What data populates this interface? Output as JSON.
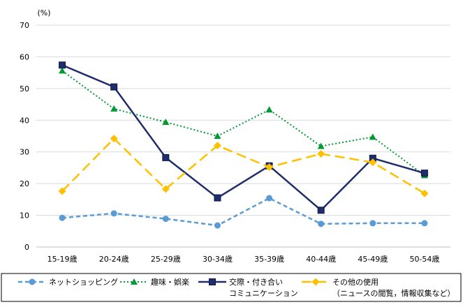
{
  "chart_data": {
    "type": "line",
    "ylabel": "(%)",
    "ylim": [
      0,
      70
    ],
    "yticks": [
      0,
      10,
      20,
      30,
      40,
      50,
      60,
      70
    ],
    "grid": "horizontal",
    "legend_position": "bottom",
    "categories": [
      "15-19歳",
      "20-24歳",
      "25-29歳",
      "30-34歳",
      "35-39歳",
      "40-44歳",
      "45-49歳",
      "50-54歳"
    ],
    "series": [
      {
        "name": "ネットショッピング",
        "name_lines": [
          "ネットショッピング"
        ],
        "color": "#5b9bd5",
        "dash": "dashed",
        "marker": "circle",
        "values": [
          9.2,
          10.6,
          8.9,
          6.8,
          15.4,
          7.3,
          7.5,
          7.5
        ]
      },
      {
        "name": "趣味・娯楽",
        "name_lines": [
          "趣味・娯楽"
        ],
        "color": "#009933",
        "dash": "dotted",
        "marker": "triangle",
        "values": [
          55.6,
          43.6,
          39.4,
          35.0,
          43.3,
          31.8,
          34.7,
          22.6
        ]
      },
      {
        "name": "交際・付き合い コミュニケーション",
        "name_lines": [
          "交際・付き合い",
          "コミュニケーション"
        ],
        "color": "#1f2d6b",
        "dash": "solid",
        "marker": "square",
        "values": [
          57.4,
          50.5,
          28.2,
          15.5,
          25.6,
          11.6,
          28.0,
          23.3
        ]
      },
      {
        "name": "その他の使用 （ニュースの閲覧，情報収集など）",
        "name_lines": [
          "その他の使用",
          "（ニュースの閲覧，情報収集など）"
        ],
        "color": "#ffc000",
        "dash": "longdash",
        "marker": "diamond",
        "values": [
          17.6,
          34.2,
          18.3,
          32.0,
          25.2,
          29.4,
          26.7,
          16.9
        ]
      }
    ]
  }
}
